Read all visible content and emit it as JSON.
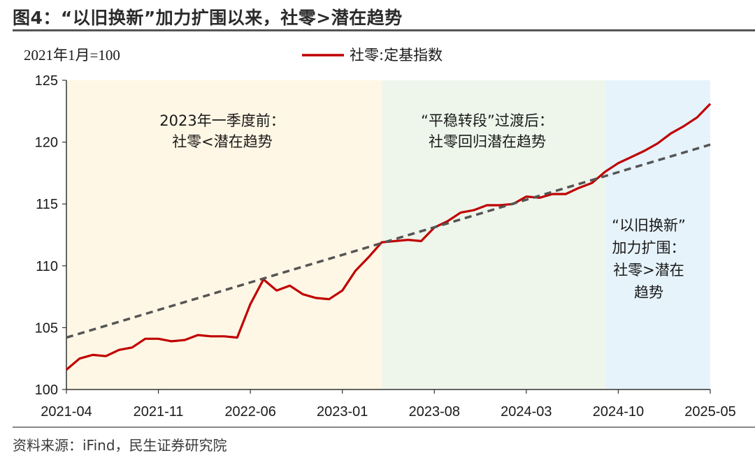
{
  "header": {
    "title": "图4：“以旧换新”加力扩围以来，社零>潜在趋势"
  },
  "footer": {
    "source": "资料来源：iFind，民生证券研究院"
  },
  "chart_data": {
    "type": "line",
    "unit_label": "2021年1月=100",
    "ylim": [
      100,
      125
    ],
    "yticks": [
      100,
      105,
      110,
      115,
      120,
      125
    ],
    "xtick_labels": [
      "2021-04",
      "2021-11",
      "2022-06",
      "2023-01",
      "2023-08",
      "2024-03",
      "2024-10",
      "2025-05"
    ],
    "x": [
      "2021-04",
      "2021-05",
      "2021-06",
      "2021-07",
      "2021-08",
      "2021-09",
      "2021-10",
      "2021-11",
      "2021-12",
      "2022-01",
      "2022-02",
      "2022-03",
      "2022-04",
      "2022-05",
      "2022-06",
      "2022-07",
      "2022-08",
      "2022-09",
      "2022-10",
      "2022-11",
      "2022-12",
      "2023-01",
      "2023-02",
      "2023-03",
      "2023-04",
      "2023-05",
      "2023-06",
      "2023-07",
      "2023-08",
      "2023-09",
      "2023-10",
      "2023-11",
      "2023-12",
      "2024-01",
      "2024-02",
      "2024-03",
      "2024-04",
      "2024-05",
      "2024-06",
      "2024-07",
      "2024-08",
      "2024-09",
      "2024-10",
      "2024-11",
      "2024-12",
      "2025-01",
      "2025-02",
      "2025-03",
      "2025-04",
      "2025-05"
    ],
    "series": [
      {
        "name": "社零:定基指数",
        "color": "#c00000",
        "values": [
          101.6,
          102.5,
          102.8,
          102.7,
          103.2,
          103.4,
          104.1,
          104.1,
          103.9,
          104.0,
          104.4,
          104.3,
          104.3,
          104.2,
          106.9,
          108.9,
          108.0,
          108.4,
          107.7,
          107.4,
          107.3,
          108.0,
          109.6,
          110.7,
          111.9,
          112.0,
          112.1,
          112.0,
          113.1,
          113.6,
          114.3,
          114.5,
          114.9,
          114.9,
          115.0,
          115.6,
          115.5,
          115.8,
          115.8,
          116.3,
          116.7,
          117.6,
          118.3,
          118.8,
          119.3,
          119.9,
          120.7,
          121.3,
          122.0,
          123.1
        ]
      },
      {
        "name": "",
        "style": "dashed",
        "color": "#555555",
        "x": [
          "2021-04",
          "2025-05"
        ],
        "values": [
          104.2,
          119.8
        ]
      }
    ],
    "regions": [
      {
        "from": "2021-04",
        "to": "2023-04",
        "color": "#fff7e5",
        "label_lines": [
          "2023年一季度前：",
          "社零<潜在趋势"
        ]
      },
      {
        "from": "2023-04",
        "to": "2024-09",
        "color": "#eef6ec",
        "label_lines": [
          "“平稳转段”过渡后：",
          "社零回归潜在趋势"
        ]
      },
      {
        "from": "2024-09",
        "to": "2025-05",
        "color": "#e6f3fb",
        "label_lines": [
          "“以旧换新”",
          "加力扩围：",
          "社零>潜在",
          "趋势"
        ]
      }
    ],
    "legend_position": "top-center",
    "grid": false
  }
}
